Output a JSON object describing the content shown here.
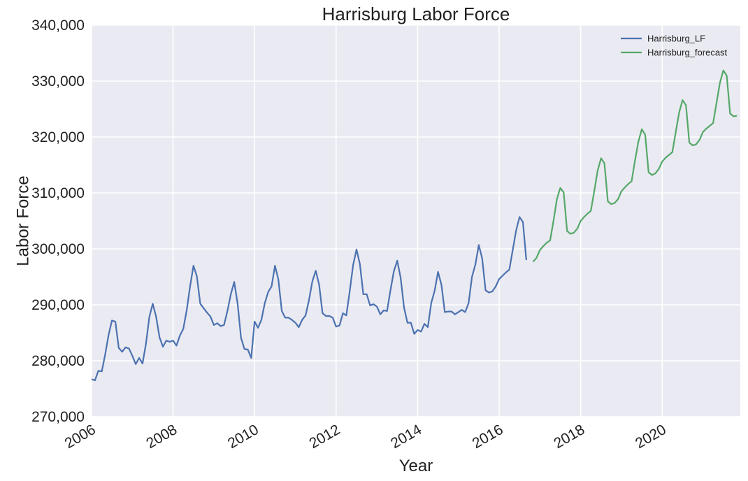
{
  "chart_data": {
    "type": "line",
    "title": "Harrisburg Labor Force",
    "xlabel": "Year",
    "ylabel": "Labor Force",
    "xlim": [
      2006.0,
      2021.917
    ],
    "ylim": [
      270000,
      340000
    ],
    "x_ticks": [
      2006,
      2008,
      2010,
      2012,
      2014,
      2016,
      2018,
      2020
    ],
    "x_tick_labels": [
      "2006",
      "2008",
      "2010",
      "2012",
      "2014",
      "2016",
      "2018",
      "2020"
    ],
    "y_ticks": [
      270000,
      280000,
      290000,
      300000,
      310000,
      320000,
      330000,
      340000
    ],
    "y_tick_labels": [
      "270,000",
      "280,000",
      "290,000",
      "300,000",
      "310,000",
      "320,000",
      "330,000",
      "340,000"
    ],
    "grid": true,
    "legend_position": "top-right",
    "background_color": "#eaeaf2",
    "grid_color": "#ffffff",
    "series": [
      {
        "name": "Harrisburg_LF",
        "color": "#4c72b0",
        "start_year": 2006,
        "start_month": 1,
        "values": [
          276700,
          276500,
          278200,
          278100,
          281100,
          284600,
          287200,
          287000,
          282300,
          281600,
          282400,
          282200,
          280900,
          279400,
          280500,
          279500,
          283000,
          287800,
          290200,
          287900,
          284200,
          282500,
          283600,
          283400,
          283600,
          282700,
          284500,
          285700,
          289000,
          293300,
          297000,
          295100,
          290200,
          289400,
          288600,
          287900,
          286400,
          286700,
          286200,
          286400,
          288900,
          291900,
          294100,
          290200,
          284100,
          282100,
          282000,
          280500,
          287000,
          285900,
          287300,
          290300,
          292300,
          293300,
          297000,
          294500,
          288900,
          287700,
          287700,
          287300,
          286800,
          286000,
          287300,
          288100,
          290800,
          294200,
          296100,
          293600,
          288500,
          288000,
          288000,
          287700,
          286100,
          286300,
          288500,
          288100,
          292400,
          297100,
          299900,
          297300,
          291900,
          291900,
          289900,
          290100,
          289700,
          288300,
          289000,
          288900,
          292600,
          296000,
          297900,
          294800,
          289500,
          286800,
          286800,
          284800,
          285500,
          285200,
          286600,
          286000,
          290300,
          292500,
          295900,
          293600,
          288700,
          288800,
          288800,
          288300,
          288700,
          289100,
          288700,
          290300,
          295000,
          297200,
          300700,
          298300,
          292600,
          292200,
          292400,
          293300,
          294600,
          295200,
          295800,
          296300,
          299800,
          303300,
          305700,
          304800,
          298000
        ]
      },
      {
        "name": "Harrisburg_forecast",
        "color": "#55a868",
        "start_year": 2016,
        "start_month": 11,
        "values": [
          297700,
          298400,
          299800,
          300500,
          301100,
          301500,
          305000,
          308900,
          310900,
          310100,
          303200,
          302700,
          302900,
          303600,
          305000,
          305700,
          306300,
          306800,
          310300,
          314000,
          316200,
          315300,
          308500,
          308000,
          308200,
          308900,
          310300,
          311000,
          311600,
          312100,
          315800,
          319200,
          321400,
          320400,
          313700,
          313200,
          313500,
          314300,
          315600,
          316300,
          316800,
          317300,
          320900,
          324400,
          326600,
          325700,
          319000,
          318500,
          318700,
          319500,
          320900,
          321500,
          322000,
          322500,
          326100,
          329700,
          331900,
          331000,
          324200,
          323700,
          323800
        ]
      }
    ]
  }
}
